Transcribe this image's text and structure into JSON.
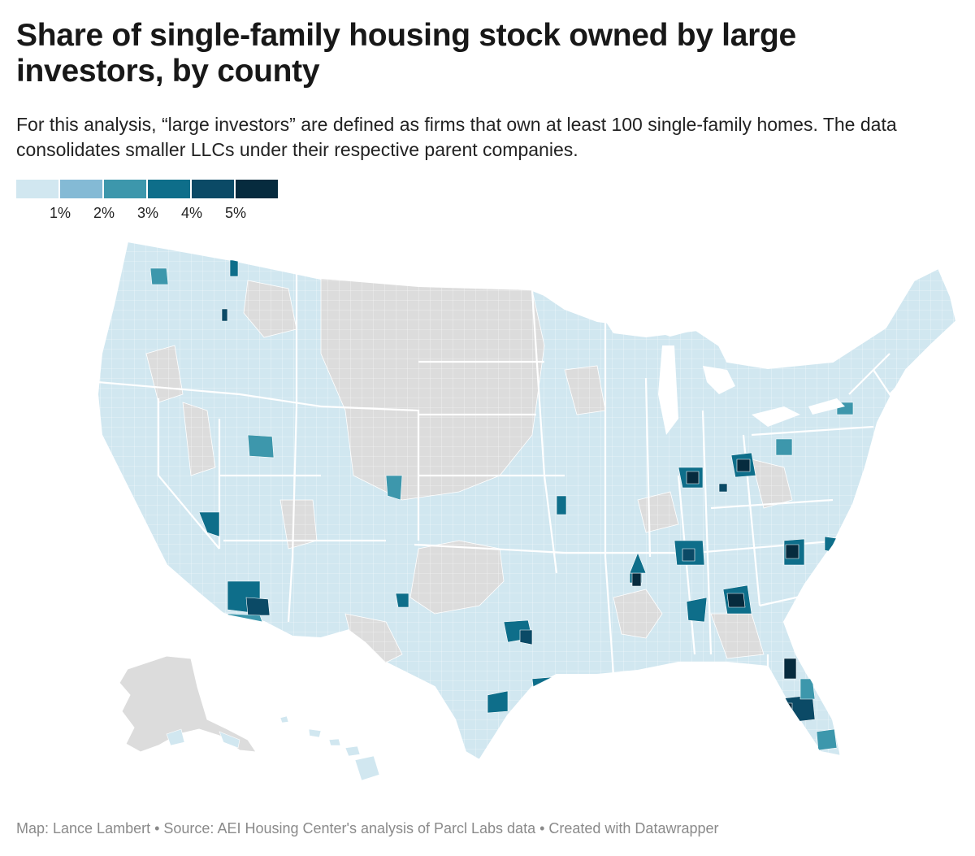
{
  "title": "Share of single-family housing stock owned by large investors, by county",
  "subtitle": "For this analysis, “large investors” are defined as firms that own at least 100 single-family homes. The data consolidates smaller LLCs under their respective parent companies.",
  "legend": {
    "colors": [
      "#d1e7f0",
      "#84bad5",
      "#3d97ac",
      "#0e6e8a",
      "#0b4a66",
      "#062b3e"
    ],
    "ticks": [
      "1%",
      "2%",
      "3%",
      "4%",
      "5%"
    ]
  },
  "map": {
    "no_data_color": "#dcdcdc",
    "base_color": "#d1e7f0",
    "border_color": "#ffffff",
    "regions": [
      "Contiguous United States",
      "Alaska",
      "Hawaii"
    ]
  },
  "footer": "Map: Lance Lambert • Source: AEI Housing Center's analysis of Parcl Labs data • Created with Datawrapper"
}
